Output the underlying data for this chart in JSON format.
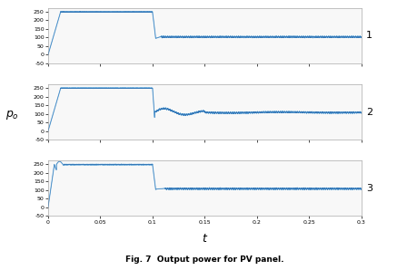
{
  "title": "Fig. 7  Output power for PV panel.",
  "xlabel": "t",
  "ylabel": "p_o",
  "xlim": [
    0,
    0.3
  ],
  "ylim": [
    -50,
    270
  ],
  "x_ticks": [
    0,
    0.05,
    0.1,
    0.15,
    0.2,
    0.25,
    0.3
  ],
  "y_ticks": [
    -50,
    0,
    50,
    100,
    150,
    200,
    250
  ],
  "line_color_light": "#7ab6e0",
  "line_color_dark": "#1a5fa8",
  "bg_color": "#f8f8f8",
  "subplot_labels": [
    "1",
    "2",
    "3"
  ],
  "t_switch": 0.1,
  "high_val": 248,
  "low_val1": 103,
  "low_val2": 108,
  "low_val3": 108,
  "rise_time1": 0.012,
  "rise_time3": 0.006,
  "ripple_amp": 4.0,
  "ripple_freq": 500,
  "noise_amp": 2.5
}
